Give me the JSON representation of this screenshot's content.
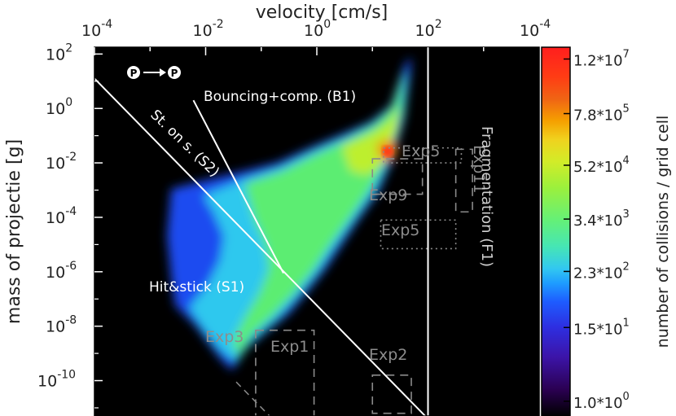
{
  "chart_data": {
    "type": "heatmap",
    "x_top_label": "velocity [cm/s]",
    "x_top_ticks": [
      {
        "pow": -4,
        "text": "10",
        "sup": "-4"
      },
      {
        "pow": -2,
        "text": "10",
        "sup": "-2"
      },
      {
        "pow": 0,
        "text": "10",
        "sup": "0"
      },
      {
        "pow": 2,
        "text": "10",
        "sup": "2"
      }
    ],
    "x_range_log10": [
      -4,
      4
    ],
    "ylabel": "mass of projectie [g]",
    "y_ticks": [
      {
        "pow": 2,
        "text": "10",
        "sup": "2"
      },
      {
        "pow": 0,
        "text": "10",
        "sup": "0"
      },
      {
        "pow": -2,
        "text": "10",
        "sup": "-2"
      },
      {
        "pow": -4,
        "text": "10",
        "sup": "-4"
      },
      {
        "pow": -6,
        "text": "10",
        "sup": "-6"
      },
      {
        "pow": -8,
        "text": "10",
        "sup": "-8"
      },
      {
        "pow": -10,
        "text": "10",
        "sup": "-10"
      }
    ],
    "y_range_log10": [
      -11.3,
      2.25
    ],
    "colorbar": {
      "label": "number of collisions / grid cell",
      "top_label": {
        "text": "10",
        "sup": "-4"
      },
      "ticks": [
        {
          "frac": 0.968,
          "text": "1.2*10",
          "sup": "7"
        },
        {
          "frac": 0.82,
          "text": "7.8*10",
          "sup": "5"
        },
        {
          "frac": 0.68,
          "text": "5.2*10",
          "sup": "4"
        },
        {
          "frac": 0.534,
          "text": "3.4*10",
          "sup": "3"
        },
        {
          "frac": 0.392,
          "text": "2.3*10",
          "sup": "2"
        },
        {
          "frac": 0.24,
          "text": "1.5*10",
          "sup": "1"
        },
        {
          "frac": 0.04,
          "text": "1.0*10",
          "sup": "0"
        }
      ],
      "colors": [
        "#000000",
        "#2a0050",
        "#3c14a8",
        "#2e2ee0",
        "#1e5cff",
        "#1e9cff",
        "#32c8f0",
        "#46e6b4",
        "#64f078",
        "#9cf03c",
        "#d2ec28",
        "#f0d21e",
        "#f5a000",
        "#f06414",
        "#ff3c14",
        "#ff1e1e"
      ]
    },
    "regimes": [
      {
        "label": "Bouncing+comp. (B1)"
      },
      {
        "label": "Hit&stick (S1)"
      },
      {
        "label": "St. on s. (S2)"
      },
      {
        "label": "Fragmentation (F1)"
      }
    ],
    "experiments": [
      {
        "label": "Exp1",
        "vlog": [
          -1.1,
          -0.05
        ],
        "mlog": [
          -12.0,
          -8.15
        ],
        "style": "dashed"
      },
      {
        "label": "Exp2",
        "vlog": [
          1.0,
          1.7
        ],
        "mlog": [
          -11.2,
          -9.8
        ],
        "style": "dashed"
      },
      {
        "label": "Exp3",
        "vlog": [
          -2.0,
          -0.8
        ],
        "mlog": [
          -9.0,
          -8.4
        ],
        "style": "none"
      },
      {
        "label": "Exp5",
        "vlog": [
          1.2,
          2.6
        ],
        "mlog": [
          -2.0,
          -1.45
        ],
        "style": "dotted"
      },
      {
        "label": "Exp5",
        "vlog": [
          1.15,
          2.5
        ],
        "mlog": [
          -5.15,
          -4.1
        ],
        "style": "dotted"
      },
      {
        "label": "Exp9",
        "vlog": [
          1.0,
          1.9
        ],
        "mlog": [
          -3.15,
          -1.85
        ],
        "style": "dashed"
      },
      {
        "label": "Exp11",
        "vlog": [
          2.5,
          2.8
        ],
        "mlog": [
          -3.8,
          -1.5
        ],
        "style": "dashed"
      }
    ],
    "legend_symbol": {
      "from": "P",
      "to": "P"
    },
    "lines": {
      "fragmentation_velocity_log10": 2.0,
      "stick_line": [
        [
          -4,
          1.1
        ],
        [
          1.95,
          -11.3
        ]
      ],
      "bounce_line": [
        [
          -2.22,
          0.3
        ],
        [
          -0.6,
          -6.05
        ]
      ]
    }
  }
}
